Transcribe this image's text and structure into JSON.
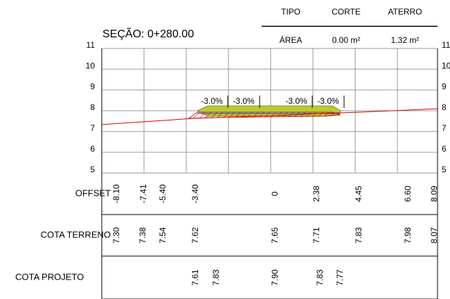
{
  "header": {
    "columns": [
      "TIPO",
      "CORTE",
      "ATERRO"
    ],
    "row": [
      "ÁREA",
      "0.00 m²",
      "1.32 m²"
    ]
  },
  "section_title": "SEÇÃO: 0+280.00",
  "y_axis": [
    "11",
    "10",
    "9",
    "8",
    "7",
    "6",
    "5"
  ],
  "slopes": [
    "-3.0%",
    "-3.0%",
    "-3.0%",
    "-3.0%"
  ],
  "rows": [
    {
      "label": "OFFSET",
      "values": [
        "-8.10",
        "-7.41",
        "-5.40",
        "-3.40",
        "0",
        "2.38",
        "4.45",
        "6.60",
        "8.09"
      ]
    },
    {
      "label": "COTA TERRENO",
      "values": [
        "7.30",
        "7.38",
        "7.54",
        "7.62",
        "7.65",
        "7.71",
        "7.83",
        "7.98",
        "8.07"
      ]
    },
    {
      "label": "COTA PROJETO",
      "values": [
        "7.61",
        "7.83",
        "7.90",
        "7.83",
        "7.77"
      ]
    }
  ]
}
